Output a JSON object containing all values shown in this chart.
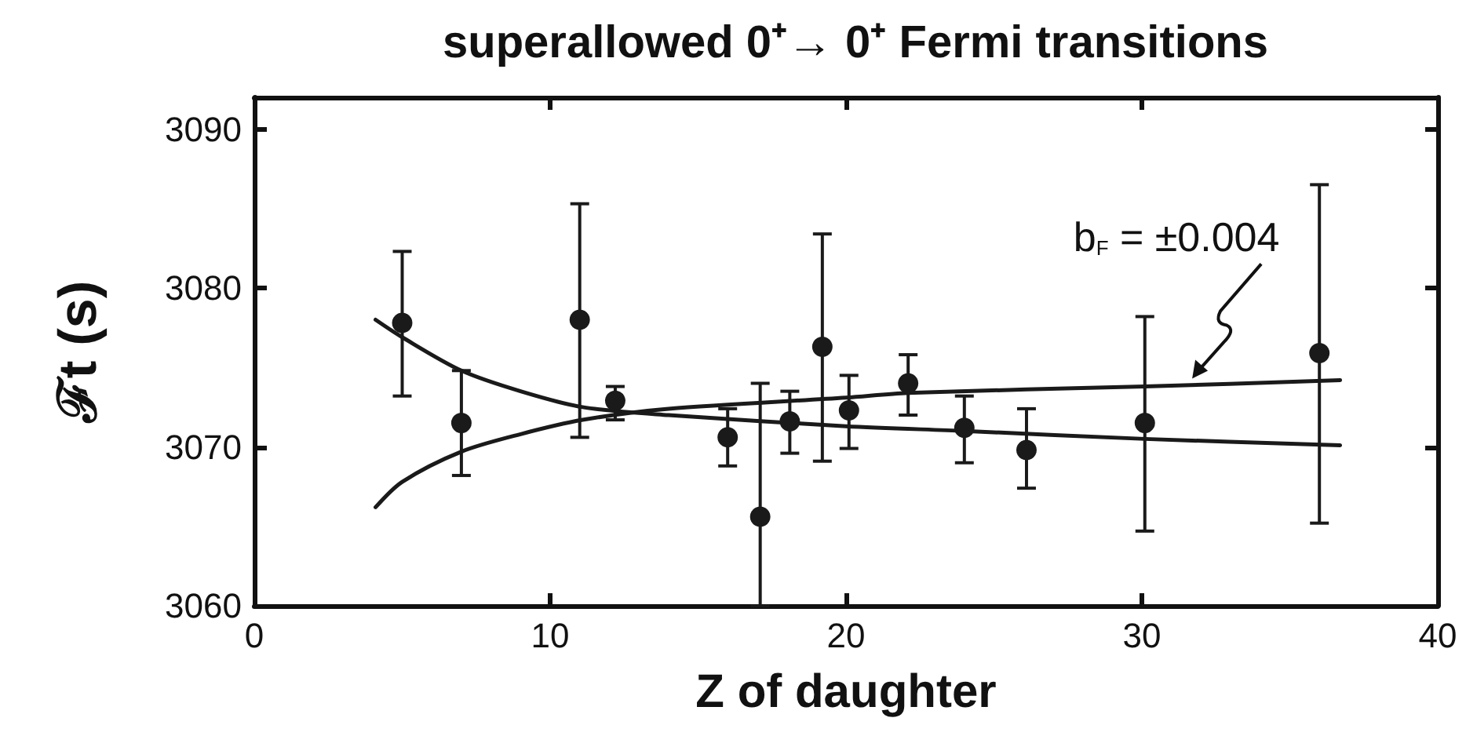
{
  "chart_data": {
    "type": "scatter",
    "title": "superallowed 0⁺→ 0⁺ Fermi transitions",
    "xlabel": "Z of daughter",
    "ylabel": "ℱt (s)",
    "xlim": [
      0,
      40
    ],
    "xticks": [
      0,
      10,
      20,
      30,
      40
    ],
    "ylim": [
      3060,
      3092
    ],
    "yticks": [
      3060,
      3070,
      3080,
      3090
    ],
    "grid": false,
    "marker": "circle",
    "annotations": [
      {
        "text": "b$_{F}$ = ±0.004",
        "x": 31.7,
        "y": 3074.3
      }
    ],
    "series": [
      {
        "color": "#1a1a1a",
        "x": [
          5,
          7,
          11,
          12.2,
          16,
          17.1,
          18.1,
          19.2,
          20.1,
          22.1,
          24,
          26.1,
          30.1,
          36
        ],
        "values": [
          3077.8,
          3071.5,
          3078.0,
          3072.9,
          3070.6,
          3065.6,
          3071.6,
          3076.3,
          3072.3,
          3074.0,
          3071.2,
          3069.8,
          3071.5,
          3075.9
        ],
        "errors": [
          [
            3073.2,
            3082.3
          ],
          [
            3068.2,
            3074.8
          ],
          [
            3070.6,
            3085.3
          ],
          [
            3071.7,
            3073.8
          ],
          [
            3068.8,
            3072.4
          ],
          [
            3060,
            3074.0
          ],
          [
            3069.6,
            3073.5
          ],
          [
            3069.1,
            3083.4
          ],
          [
            3069.9,
            3074.5
          ],
          [
            3072.0,
            3075.8
          ],
          [
            3069.0,
            3073.2
          ],
          [
            3067.4,
            3072.4
          ],
          [
            3064.7,
            3078.2
          ],
          [
            3065.2,
            3086.5
          ]
        ]
      },
      {
        "type": "line",
        "color": "#1a1a1a",
        "marker": "none",
        "line_style": "solid",
        "x": [
          4.1,
          5,
          7,
          9,
          11.1,
          14,
          20,
          24,
          30.1,
          36.7
        ],
        "values": [
          3078.0,
          3076.9,
          3074.8,
          3073.5,
          3072.5,
          3072.0,
          3071.3,
          3071.0,
          3070.5,
          3070.1
        ]
      },
      {
        "type": "line",
        "color": "#1a1a1a",
        "marker": "none",
        "line_style": "solid",
        "x": [
          4.1,
          5,
          7,
          9,
          11.1,
          14,
          20,
          22.1,
          30.1,
          36.7
        ],
        "values": [
          3066.2,
          3067.8,
          3069.7,
          3070.8,
          3071.7,
          3072.4,
          3073.1,
          3073.4,
          3073.8,
          3074.2
        ]
      }
    ]
  }
}
